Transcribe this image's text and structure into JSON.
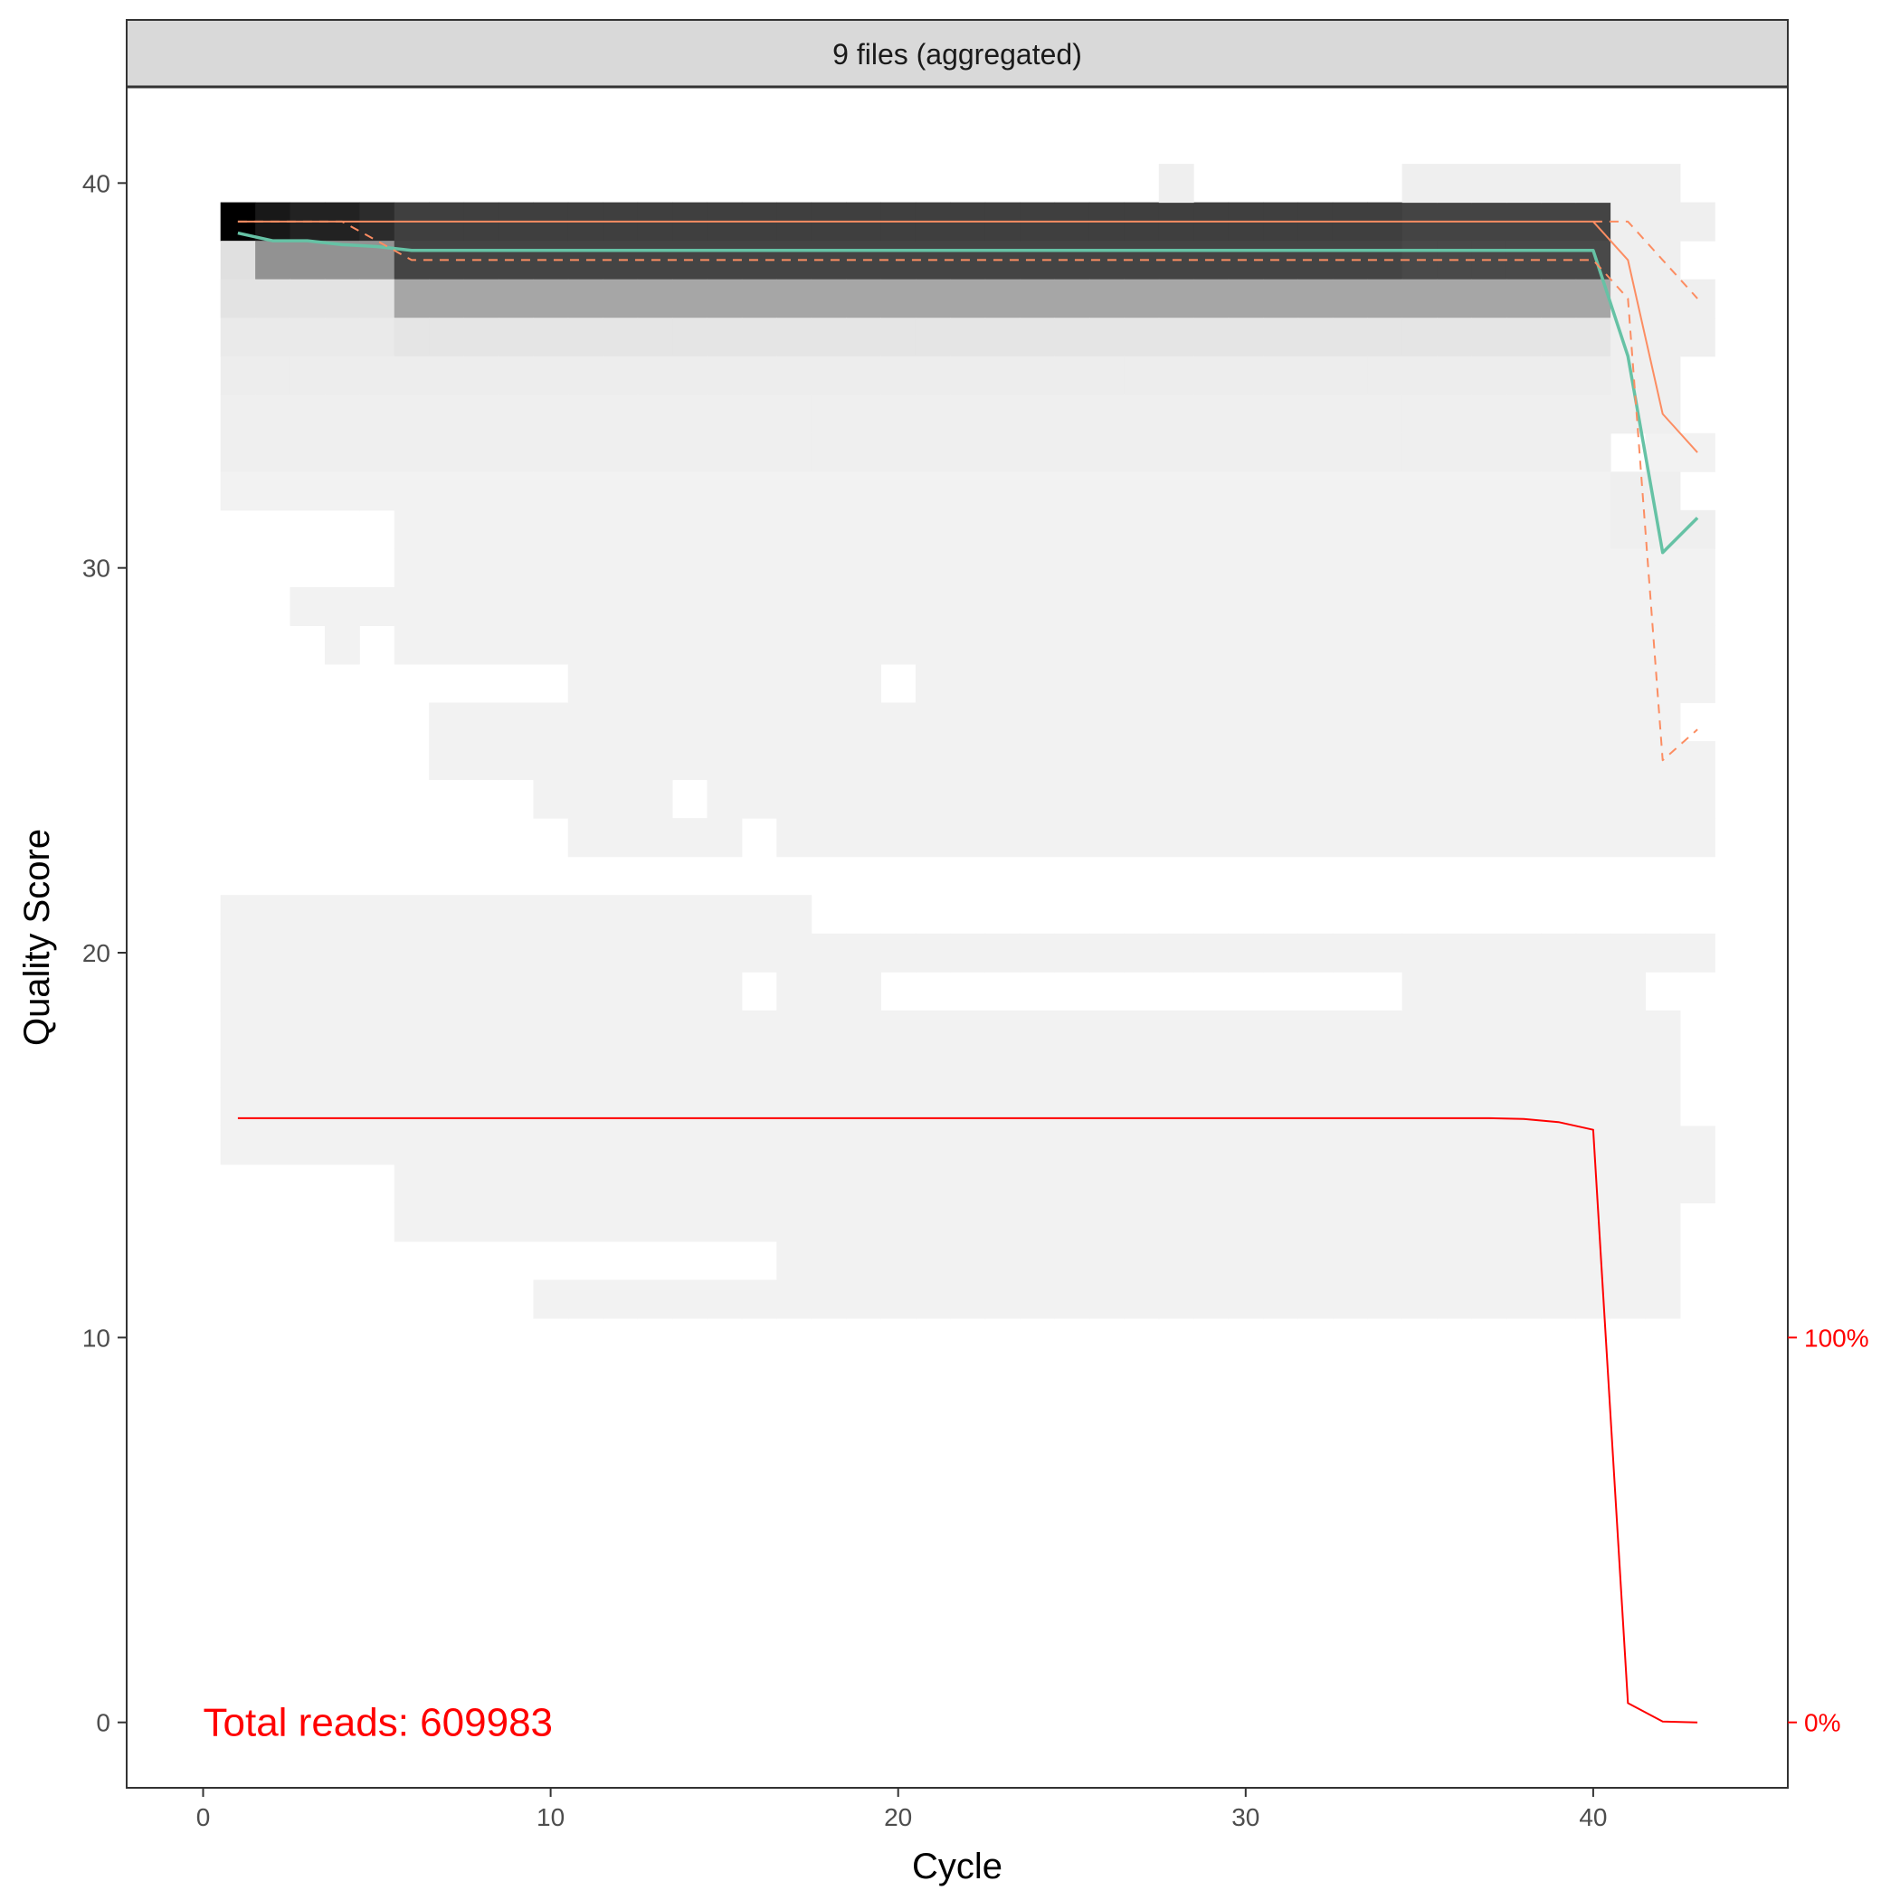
{
  "chart_data": {
    "type": "heatmap",
    "facet_label": "9 files (aggregated)",
    "xlabel": "Cycle",
    "ylabel": "Quality Score",
    "xlim": [
      -2.2,
      45.6
    ],
    "ylim": [
      -1.7,
      42.5
    ],
    "x_ticks": [
      0,
      10,
      20,
      30,
      40
    ],
    "y_ticks": [
      0,
      10,
      20,
      30,
      40
    ],
    "right_axis_labels": [
      {
        "value": 10,
        "label": "100%"
      },
      {
        "value": 0,
        "label": "0%"
      }
    ],
    "annotation": {
      "text": "Total reads: 609983",
      "x": 0,
      "y": 0
    },
    "grid": false,
    "colors": {
      "median": "#66c2a5",
      "quartile": "#fc8d62",
      "reads": "#ff0000",
      "heat_low": "#f4f4f4",
      "heat_high": "#000000"
    },
    "heat_bands": [
      {
        "q": 39,
        "segments": [
          [
            1,
            1,
            1.0
          ],
          [
            2,
            2,
            0.9
          ],
          [
            3,
            4,
            0.86
          ],
          [
            5,
            5,
            0.82
          ],
          [
            6,
            34,
            0.74
          ],
          [
            35,
            40,
            0.72
          ]
        ]
      },
      {
        "q": 38,
        "segments": [
          [
            1,
            1,
            0.08
          ],
          [
            2,
            5,
            0.4
          ],
          [
            6,
            34,
            0.72
          ],
          [
            35,
            40,
            0.7
          ]
        ]
      },
      {
        "q": 37,
        "segments": [
          [
            1,
            5,
            0.07
          ],
          [
            6,
            40,
            0.32
          ]
        ]
      },
      {
        "q": 36,
        "segments": [
          [
            1,
            5,
            0.04
          ],
          [
            6,
            40,
            0.06
          ]
        ]
      },
      {
        "q": 35,
        "segments": [
          [
            1,
            40,
            0.03
          ]
        ]
      },
      {
        "q": 34,
        "segments": [
          [
            1,
            40,
            0.02
          ]
        ]
      },
      {
        "q": 33,
        "segments": [
          [
            1,
            40,
            0.02
          ],
          [
            42,
            43,
            0.01
          ]
        ]
      },
      {
        "q": 32,
        "segments": [
          [
            1,
            40,
            0.01
          ]
        ]
      },
      {
        "q": 31,
        "segments": [
          [
            6,
            43,
            0.01
          ]
        ]
      },
      {
        "q": 30,
        "segments": [
          [
            6,
            43,
            0.01
          ]
        ]
      },
      {
        "q": 29,
        "segments": [
          [
            3,
            43,
            0.01
          ]
        ]
      },
      {
        "q": 28,
        "segments": [
          [
            4,
            4,
            0.01
          ],
          [
            6,
            43,
            0.01
          ]
        ]
      },
      {
        "q": 27,
        "segments": [
          [
            11,
            19,
            0.01
          ],
          [
            21,
            43,
            0.01
          ]
        ]
      },
      {
        "q": 26,
        "segments": [
          [
            7,
            42,
            0.01
          ]
        ]
      },
      {
        "q": 25,
        "segments": [
          [
            7,
            43,
            0.01
          ]
        ]
      },
      {
        "q": 24,
        "segments": [
          [
            10,
            13,
            0.01
          ],
          [
            15,
            43,
            0.01
          ]
        ]
      },
      {
        "q": 23,
        "segments": [
          [
            11,
            15,
            0.01
          ],
          [
            17,
            43,
            0.01
          ]
        ]
      },
      {
        "q": 21,
        "segments": [
          [
            1,
            17,
            0.01
          ]
        ]
      },
      {
        "q": 20,
        "segments": [
          [
            1,
            43,
            0.01
          ]
        ]
      },
      {
        "q": 19,
        "segments": [
          [
            1,
            15,
            0.01
          ],
          [
            17,
            19,
            0.01
          ],
          [
            35,
            41,
            0.01
          ]
        ]
      },
      {
        "q": 18,
        "segments": [
          [
            1,
            42,
            0.01
          ]
        ]
      },
      {
        "q": 17,
        "segments": [
          [
            1,
            42,
            0.01
          ]
        ]
      },
      {
        "q": 16,
        "segments": [
          [
            1,
            42,
            0.01
          ]
        ]
      },
      {
        "q": 15,
        "segments": [
          [
            1,
            43,
            0.01
          ]
        ]
      },
      {
        "q": 14,
        "segments": [
          [
            6,
            43,
            0.01
          ]
        ]
      },
      {
        "q": 13,
        "segments": [
          [
            6,
            42,
            0.01
          ]
        ]
      },
      {
        "q": 12,
        "segments": [
          [
            17,
            42,
            0.01
          ]
        ]
      },
      {
        "q": 11,
        "segments": [
          [
            10,
            42,
            0.01
          ]
        ]
      }
    ],
    "extra_cells": [
      [
        28,
        40
      ],
      [
        35,
        40
      ],
      [
        36,
        40
      ],
      [
        37,
        40
      ],
      [
        38,
        40
      ],
      [
        39,
        40
      ],
      [
        40,
        40
      ],
      [
        41,
        40
      ],
      [
        42,
        40
      ],
      [
        41,
        39
      ],
      [
        42,
        39
      ],
      [
        43,
        39
      ],
      [
        41,
        38
      ],
      [
        42,
        38
      ],
      [
        41,
        37
      ],
      [
        42,
        37
      ],
      [
        43,
        37
      ],
      [
        41,
        36
      ],
      [
        42,
        36
      ],
      [
        43,
        36
      ],
      [
        41,
        35
      ],
      [
        42,
        35
      ],
      [
        41,
        34
      ],
      [
        42,
        34
      ],
      [
        41,
        32
      ],
      [
        42,
        32
      ],
      [
        41,
        31
      ],
      [
        42,
        31
      ],
      [
        43,
        31
      ]
    ],
    "series": [
      {
        "name": "mean",
        "x": [
          1,
          2,
          3,
          4,
          5,
          6,
          10,
          20,
          30,
          35,
          36,
          37,
          38,
          39,
          40,
          41,
          42,
          43
        ],
        "y": [
          38.7,
          38.5,
          38.5,
          38.4,
          38.35,
          38.25,
          38.25,
          38.25,
          38.25,
          38.25,
          38.25,
          38.25,
          38.25,
          38.25,
          38.25,
          35.5,
          30.4,
          31.3
        ]
      },
      {
        "name": "q50",
        "x": [
          1,
          10,
          20,
          30,
          39,
          40,
          41,
          42,
          43
        ],
        "y": [
          39,
          39,
          39,
          39,
          39,
          39,
          38,
          34,
          33
        ]
      },
      {
        "name": "q25",
        "x": [
          1,
          4,
          5,
          6,
          10,
          20,
          30,
          40,
          41,
          42,
          43
        ],
        "y": [
          39,
          39,
          38.5,
          38,
          38,
          38,
          38,
          38,
          37,
          25,
          25.8
        ]
      },
      {
        "name": "q75",
        "x": [
          40,
          41,
          42,
          43
        ],
        "y": [
          39,
          39,
          38,
          37
        ]
      },
      {
        "name": "reads",
        "x": [
          1,
          5,
          10,
          20,
          30,
          37,
          38,
          39,
          40,
          41,
          42,
          43
        ],
        "y": [
          15.7,
          15.7,
          15.7,
          15.7,
          15.7,
          15.7,
          15.68,
          15.6,
          15.4,
          0.5,
          0.02,
          0
        ]
      }
    ]
  }
}
